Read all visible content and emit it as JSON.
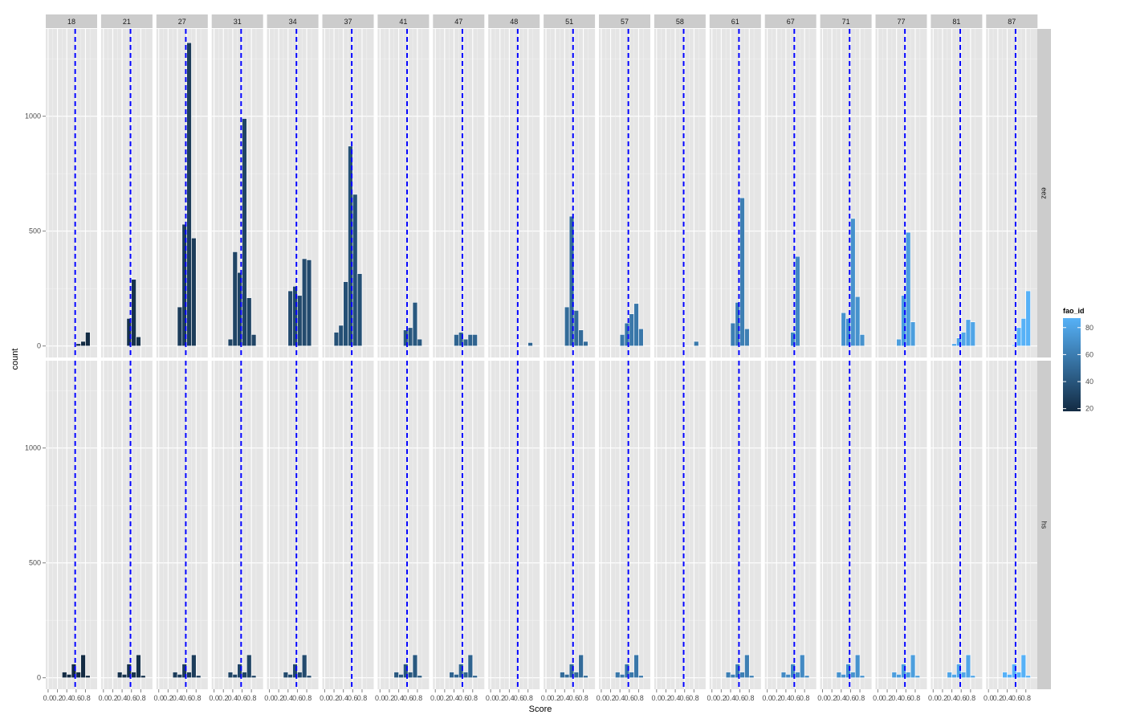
{
  "chart_data": {
    "type": "bar",
    "description_kind": "faceted histogram",
    "xlabel": "Score",
    "ylabel": "count",
    "x_ticks": [
      "0.0",
      "0.4",
      "0.8"
    ],
    "x_tick_values": [
      0.0,
      0.2,
      0.4,
      0.6,
      0.8
    ],
    "x_tick_labels": [
      "0.0",
      "0.2",
      "0.4",
      "0.6",
      "0.8"
    ],
    "xlim": [
      -0.05,
      1.05
    ],
    "ylim": [
      -50,
      1380
    ],
    "y_ticks": [
      0,
      500,
      1000
    ],
    "y_tick_labels": [
      "0",
      "500",
      "1000"
    ],
    "bin_centers": [
      0.25,
      0.35,
      0.45,
      0.55,
      0.65,
      0.75,
      0.85
    ],
    "column_facets": [
      "18",
      "21",
      "27",
      "31",
      "34",
      "37",
      "41",
      "47",
      "48",
      "51",
      "57",
      "58",
      "61",
      "67",
      "71",
      "77",
      "81",
      "87"
    ],
    "row_facets": [
      "eez",
      "hs"
    ],
    "reference_line": {
      "color": "#0000ff",
      "style": "dashed",
      "x_values": [
        0.58,
        0.58,
        0.58,
        0.58,
        0.58,
        0.58,
        0.58,
        0.58,
        0.58,
        0.58,
        0.58,
        0.58,
        0.58,
        0.58,
        0.58,
        0.58,
        0.58,
        0.58
      ]
    },
    "fill_by_facet": [
      18,
      21,
      27,
      31,
      34,
      37,
      41,
      47,
      48,
      51,
      57,
      58,
      61,
      67,
      71,
      77,
      81,
      87
    ],
    "series": [
      {
        "name": "eez",
        "values_per_facet": [
          [
            0,
            0,
            0,
            0,
            10,
            20,
            60
          ],
          [
            0,
            0,
            0,
            120,
            290,
            40,
            0
          ],
          [
            0,
            0,
            170,
            530,
            1320,
            470,
            0
          ],
          [
            0,
            30,
            410,
            320,
            990,
            210,
            50
          ],
          [
            0,
            0,
            240,
            260,
            220,
            380,
            375
          ],
          [
            60,
            90,
            280,
            870,
            660,
            315,
            0
          ],
          [
            0,
            0,
            0,
            70,
            80,
            190,
            30
          ],
          [
            0,
            0,
            50,
            60,
            30,
            50,
            50
          ],
          [
            0,
            0,
            0,
            0,
            0,
            0,
            15
          ],
          [
            0,
            0,
            170,
            565,
            155,
            70,
            20
          ],
          [
            0,
            0,
            50,
            100,
            140,
            185,
            75
          ],
          [
            0,
            0,
            0,
            0,
            0,
            0,
            20
          ],
          [
            0,
            0,
            100,
            190,
            645,
            75,
            0
          ],
          [
            0,
            0,
            0,
            60,
            390,
            0,
            0
          ],
          [
            0,
            0,
            145,
            120,
            555,
            215,
            50
          ],
          [
            0,
            0,
            30,
            220,
            495,
            105,
            0
          ],
          [
            0,
            0,
            10,
            35,
            60,
            115,
            105
          ],
          [
            0,
            0,
            0,
            5,
            80,
            120,
            240
          ]
        ]
      },
      {
        "name": "hs",
        "values_per_facet": [
          [
            0,
            25,
            15,
            60,
            25,
            100,
            10
          ],
          [
            0,
            25,
            15,
            60,
            25,
            100,
            10
          ],
          [
            0,
            25,
            15,
            60,
            25,
            100,
            10
          ],
          [
            0,
            25,
            15,
            60,
            25,
            100,
            10
          ],
          [
            0,
            25,
            15,
            60,
            25,
            100,
            10
          ],
          [
            0,
            0,
            0,
            0,
            0,
            0,
            0
          ],
          [
            0,
            25,
            15,
            60,
            25,
            100,
            10
          ],
          [
            0,
            25,
            15,
            60,
            25,
            100,
            10
          ],
          [
            0,
            0,
            0,
            0,
            0,
            0,
            0
          ],
          [
            0,
            25,
            15,
            60,
            25,
            100,
            10
          ],
          [
            0,
            25,
            15,
            60,
            25,
            100,
            10
          ],
          [
            0,
            0,
            0,
            0,
            0,
            0,
            0
          ],
          [
            0,
            25,
            15,
            60,
            25,
            100,
            10
          ],
          [
            0,
            25,
            15,
            60,
            25,
            100,
            10
          ],
          [
            0,
            25,
            15,
            60,
            25,
            100,
            10
          ],
          [
            0,
            25,
            15,
            60,
            25,
            100,
            10
          ],
          [
            0,
            25,
            15,
            60,
            25,
            100,
            10
          ],
          [
            0,
            25,
            15,
            60,
            25,
            100,
            10
          ]
        ]
      }
    ],
    "legend": {
      "title": "fao_id",
      "placement": "right",
      "ticks": [
        20,
        40,
        60,
        80
      ],
      "tick_labels": [
        "20",
        "40",
        "60",
        "80"
      ],
      "range": [
        18,
        87
      ],
      "color_low": "#132B43",
      "color_high": "#56B1F7"
    },
    "panel_background": "#e5e5e5",
    "strip_background": "#cccccc",
    "grid": true
  }
}
